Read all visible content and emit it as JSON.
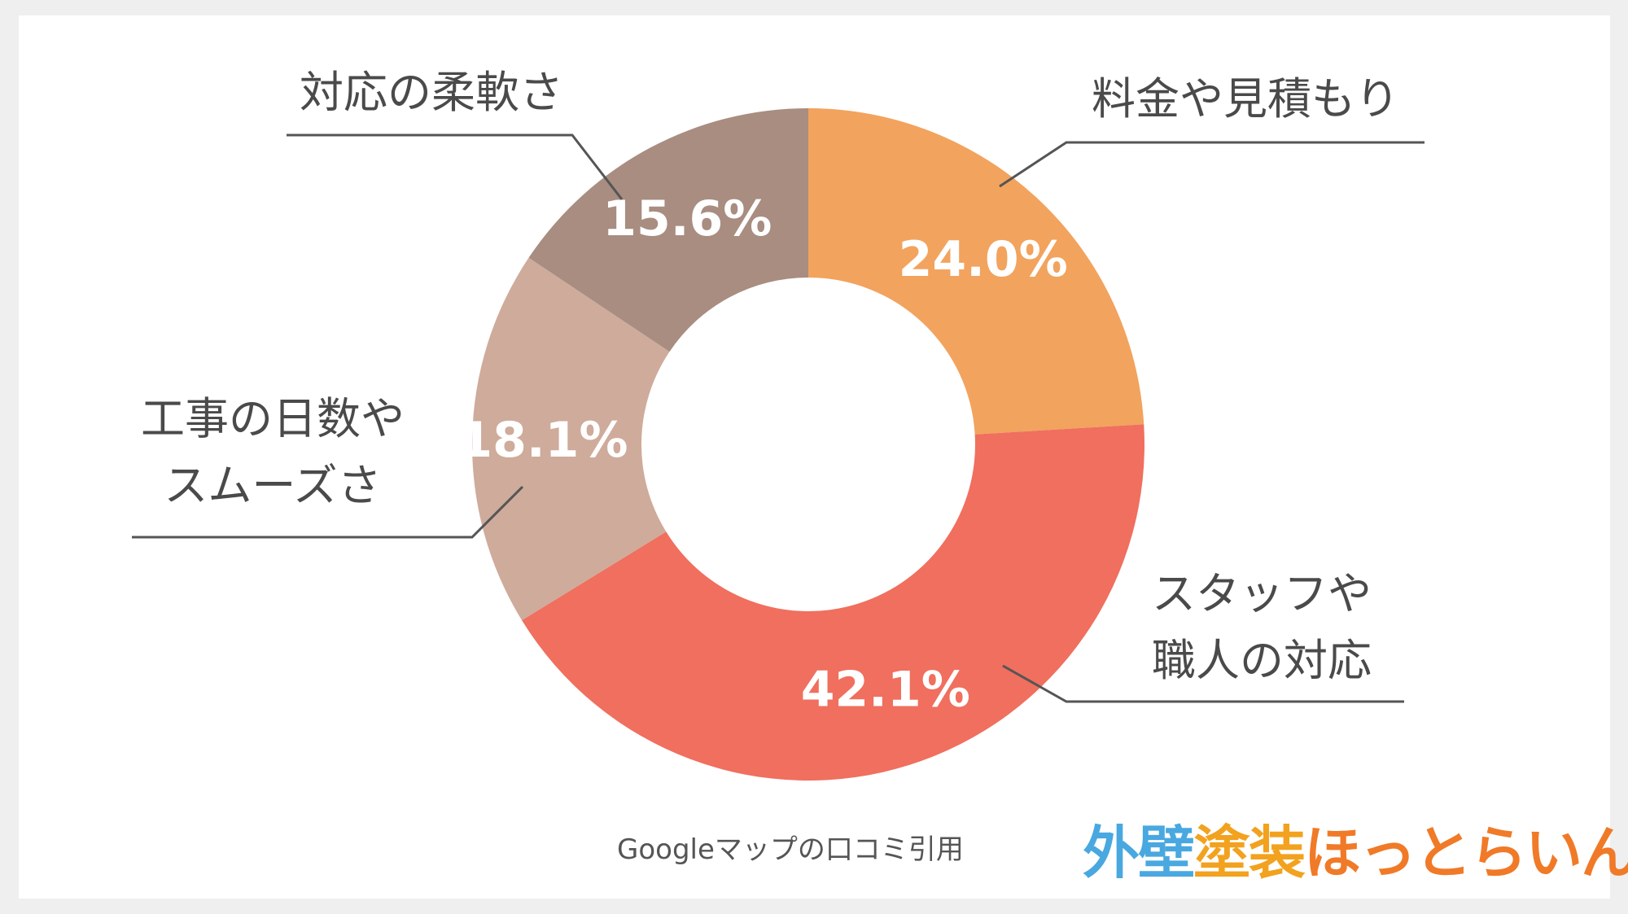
{
  "chart_data": {
    "type": "pie",
    "donut": true,
    "slices": [
      {
        "label": "料金や見積もり",
        "lines": [
          "料金や見積もり"
        ],
        "value": 24.0,
        "display": "24.0%",
        "color": "#f2a35e"
      },
      {
        "label": "スタッフや職人の対応",
        "lines": [
          "スタッフや",
          "職人の対応"
        ],
        "value": 42.1,
        "display": "42.1%",
        "color": "#f06f5e"
      },
      {
        "label": "工事の日数やスムーズさ",
        "lines": [
          "工事の日数や",
          "スムーズさ"
        ],
        "value": 18.1,
        "display": "18.1%",
        "color": "#cfab9b"
      },
      {
        "label": "対応の柔軟さ",
        "lines": [
          "対応の柔軟さ"
        ],
        "value": 15.6,
        "display": "15.6%",
        "color": "#a88d80"
      }
    ],
    "start": "12 o'clock",
    "direction": "clockwise"
  },
  "source_note": "Googleマップの口コミ引用",
  "brand": {
    "parts": [
      {
        "text": "外壁",
        "color": "#49a8e0"
      },
      {
        "text": "塗装",
        "color": "#f2a21e"
      },
      {
        "text": "ほっとらいん",
        "color": "#f07a28"
      }
    ]
  }
}
